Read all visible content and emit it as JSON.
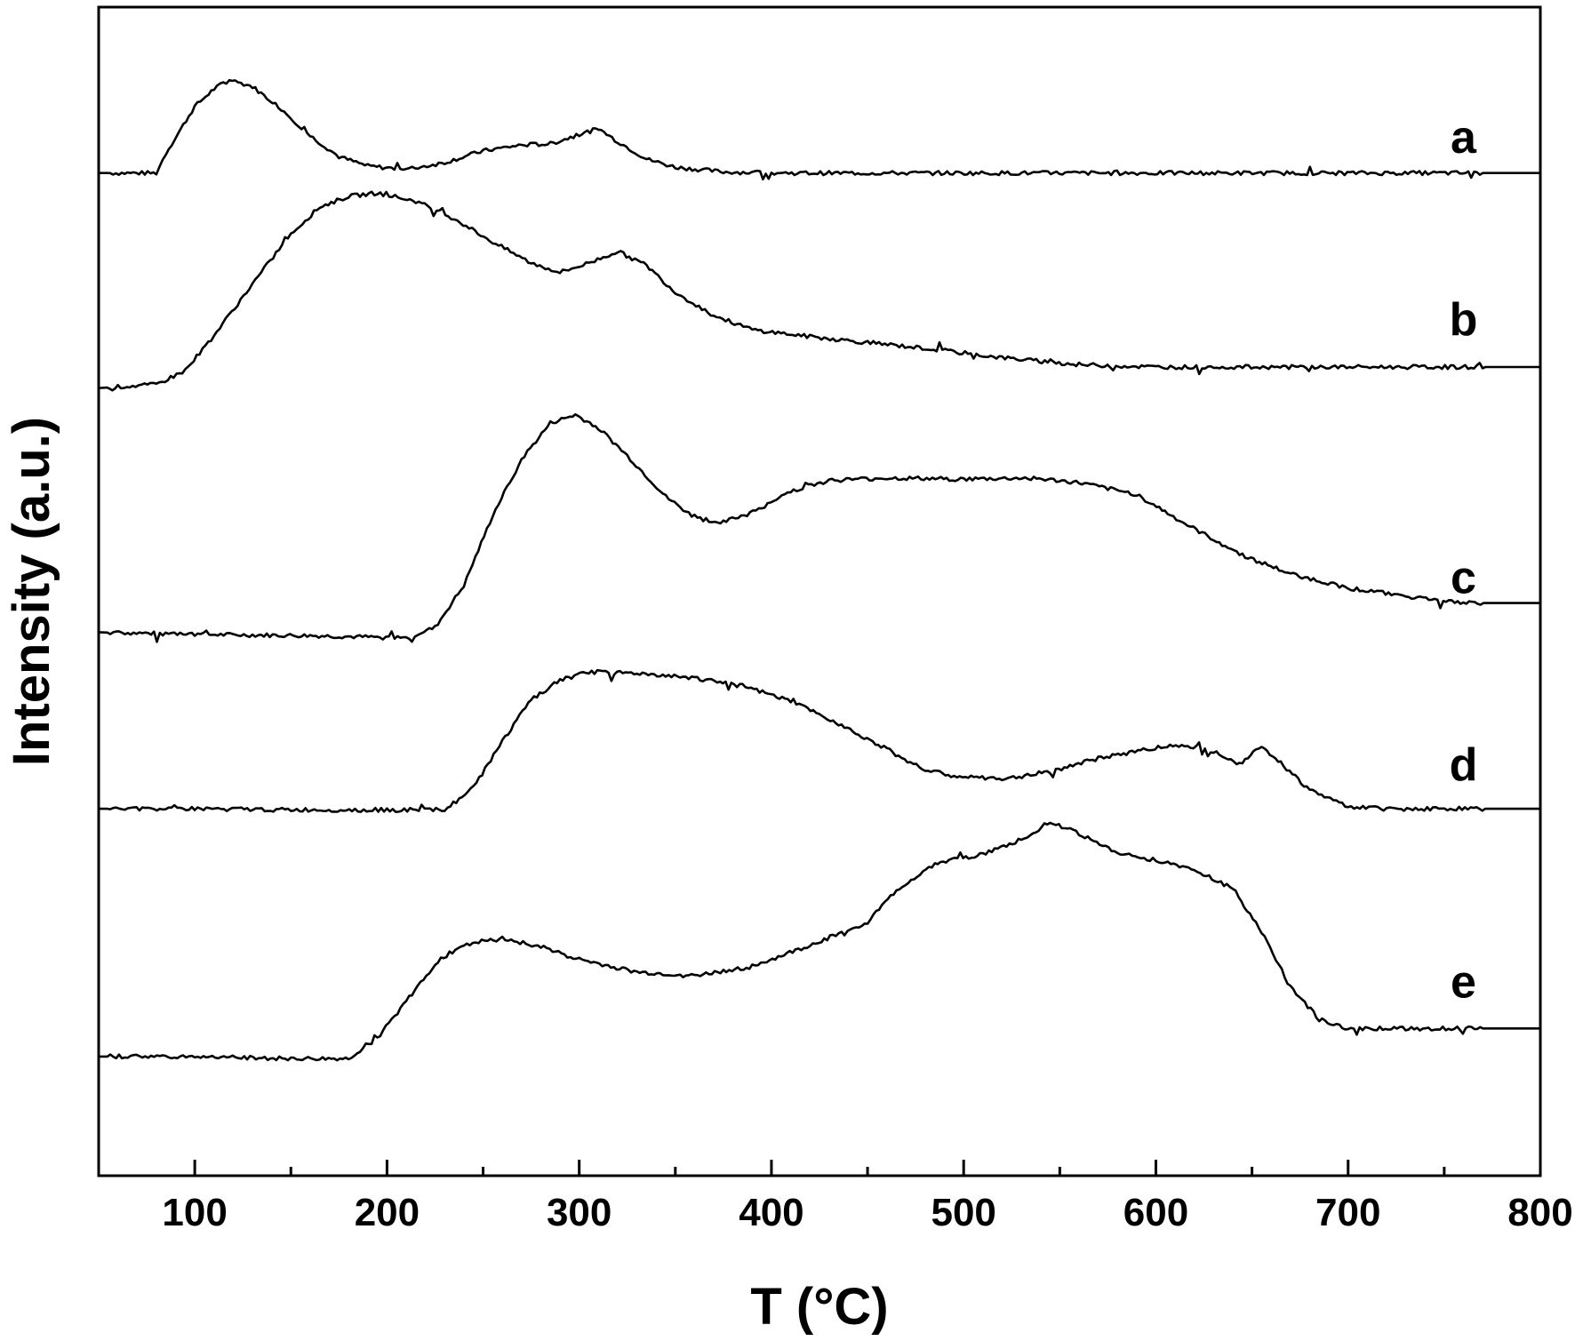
{
  "chart_data": {
    "type": "line",
    "xlabel": "T (°C)",
    "ylabel": "Intensity (a.u.)",
    "xlim": [
      50,
      800
    ],
    "ylim": [
      0,
      100
    ],
    "x_ticks_major": [
      100,
      200,
      300,
      400,
      500,
      600,
      700,
      800
    ],
    "x_ticks_minor": [
      150,
      250,
      350,
      450,
      550,
      650,
      750
    ],
    "x_tick_labels": [
      "100",
      "200",
      "300",
      "400",
      "500",
      "600",
      "700",
      "800"
    ],
    "grid": false,
    "legend": "none",
    "series": [
      {
        "name": "a",
        "label_position": [
          760,
          88.9
        ],
        "points": [
          [
            50,
            85.8
          ],
          [
            80,
            85.8
          ],
          [
            85,
            87.5
          ],
          [
            100,
            91.5
          ],
          [
            110,
            93.0
          ],
          [
            118,
            93.8
          ],
          [
            130,
            93.2
          ],
          [
            145,
            91.3
          ],
          [
            160,
            89.0
          ],
          [
            175,
            87.2
          ],
          [
            190,
            86.4
          ],
          [
            210,
            86.1
          ],
          [
            230,
            86.7
          ],
          [
            250,
            87.7
          ],
          [
            270,
            88.2
          ],
          [
            285,
            88.3
          ],
          [
            300,
            89.1
          ],
          [
            310,
            89.6
          ],
          [
            320,
            88.5
          ],
          [
            335,
            87.0
          ],
          [
            350,
            86.3
          ],
          [
            375,
            85.9
          ],
          [
            400,
            85.8
          ],
          [
            800,
            85.8
          ]
        ]
      },
      {
        "name": "b",
        "label_position": [
          760,
          73.3
        ],
        "points": [
          [
            50,
            67.4
          ],
          [
            60,
            67.5
          ],
          [
            80,
            67.7
          ],
          [
            95,
            68.9
          ],
          [
            110,
            71.9
          ],
          [
            130,
            76.3
          ],
          [
            150,
            80.6
          ],
          [
            165,
            82.9
          ],
          [
            180,
            83.8
          ],
          [
            195,
            84.1
          ],
          [
            215,
            83.4
          ],
          [
            235,
            81.9
          ],
          [
            255,
            79.9
          ],
          [
            275,
            78.1
          ],
          [
            290,
            77.3
          ],
          [
            305,
            78.1
          ],
          [
            320,
            79.1
          ],
          [
            335,
            77.9
          ],
          [
            350,
            75.6
          ],
          [
            370,
            73.6
          ],
          [
            390,
            72.4
          ],
          [
            420,
            71.8
          ],
          [
            450,
            71.3
          ],
          [
            480,
            70.8
          ],
          [
            520,
            70.0
          ],
          [
            560,
            69.4
          ],
          [
            600,
            69.2
          ],
          [
            800,
            69.2
          ]
        ]
      },
      {
        "name": "c",
        "label_position": [
          760,
          51.2
        ],
        "points": [
          [
            50,
            46.5
          ],
          [
            100,
            46.3
          ],
          [
            160,
            46.2
          ],
          [
            210,
            46.0
          ],
          [
            225,
            46.9
          ],
          [
            240,
            50.5
          ],
          [
            255,
            56.5
          ],
          [
            270,
            61.3
          ],
          [
            285,
            64.4
          ],
          [
            298,
            65.1
          ],
          [
            310,
            64.0
          ],
          [
            325,
            61.6
          ],
          [
            345,
            58.1
          ],
          [
            360,
            56.3
          ],
          [
            375,
            55.9
          ],
          [
            395,
            57.1
          ],
          [
            410,
            58.6
          ],
          [
            430,
            59.5
          ],
          [
            460,
            59.7
          ],
          [
            500,
            59.6
          ],
          [
            535,
            59.7
          ],
          [
            560,
            59.3
          ],
          [
            590,
            58.3
          ],
          [
            615,
            55.8
          ],
          [
            645,
            53.1
          ],
          [
            670,
            51.5
          ],
          [
            700,
            50.3
          ],
          [
            730,
            49.6
          ],
          [
            760,
            49.0
          ],
          [
            800,
            49.0
          ]
        ]
      },
      {
        "name": "d",
        "label_position": [
          760,
          35.2
        ],
        "points": [
          [
            50,
            31.4
          ],
          [
            100,
            31.4
          ],
          [
            150,
            31.3
          ],
          [
            200,
            31.3
          ],
          [
            230,
            31.3
          ],
          [
            245,
            33.2
          ],
          [
            260,
            37.2
          ],
          [
            275,
            40.7
          ],
          [
            290,
            42.4
          ],
          [
            305,
            43.1
          ],
          [
            330,
            43.0
          ],
          [
            360,
            42.6
          ],
          [
            385,
            41.9
          ],
          [
            410,
            40.6
          ],
          [
            435,
            38.7
          ],
          [
            460,
            36.5
          ],
          [
            480,
            34.7
          ],
          [
            495,
            34.2
          ],
          [
            520,
            33.9
          ],
          [
            545,
            34.6
          ],
          [
            570,
            35.7
          ],
          [
            595,
            36.5
          ],
          [
            615,
            36.9
          ],
          [
            630,
            36.3
          ],
          [
            645,
            35.3
          ],
          [
            655,
            36.8
          ],
          [
            665,
            35.3
          ],
          [
            680,
            33.0
          ],
          [
            700,
            31.6
          ],
          [
            720,
            31.4
          ],
          [
            800,
            31.4
          ]
        ]
      },
      {
        "name": "e",
        "label_position": [
          760,
          16.6
        ],
        "points": [
          [
            50,
            10.2
          ],
          [
            100,
            10.2
          ],
          [
            150,
            10.0
          ],
          [
            180,
            10.0
          ],
          [
            195,
            11.8
          ],
          [
            210,
            14.9
          ],
          [
            225,
            18.1
          ],
          [
            240,
            19.8
          ],
          [
            260,
            20.3
          ],
          [
            280,
            19.6
          ],
          [
            300,
            18.5
          ],
          [
            330,
            17.4
          ],
          [
            360,
            17.1
          ],
          [
            390,
            17.9
          ],
          [
            420,
            19.7
          ],
          [
            450,
            21.7
          ],
          [
            465,
            24.4
          ],
          [
            485,
            26.7
          ],
          [
            510,
            27.5
          ],
          [
            530,
            28.7
          ],
          [
            545,
            30.3
          ],
          [
            560,
            29.3
          ],
          [
            580,
            27.6
          ],
          [
            600,
            27.0
          ],
          [
            620,
            26.2
          ],
          [
            640,
            24.6
          ],
          [
            655,
            20.9
          ],
          [
            670,
            16.1
          ],
          [
            685,
            13.4
          ],
          [
            700,
            12.6
          ],
          [
            715,
            12.6
          ],
          [
            800,
            12.6
          ]
        ]
      }
    ]
  }
}
